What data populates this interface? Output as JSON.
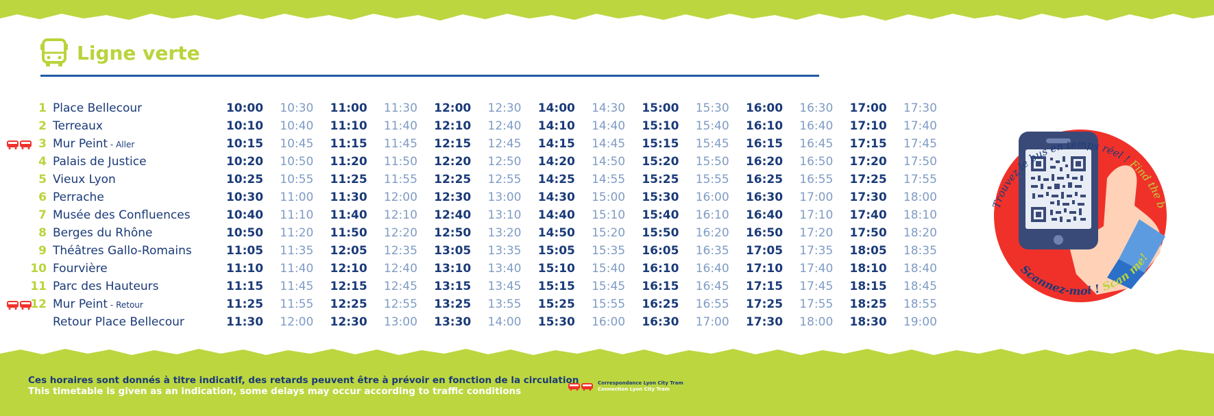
{
  "header": {
    "title": "Ligne verte",
    "icon": "bus-icon"
  },
  "colors": {
    "green": "#bcd640",
    "navy": "#1a3a78",
    "blue": "#1f5aa6",
    "light_blue": "#7f9bc4",
    "red": "#f0312a"
  },
  "stops": [
    {
      "num": "1",
      "name": "Place Bellecour",
      "suffix": "",
      "tram": false,
      "times": [
        "10:00",
        "10:30",
        "11:00",
        "11:30",
        "12:00",
        "12:30",
        "14:00",
        "14:30",
        "15:00",
        "15:30",
        "16:00",
        "16:30",
        "17:00",
        "17:30"
      ]
    },
    {
      "num": "2",
      "name": "Terreaux",
      "suffix": "",
      "tram": false,
      "times": [
        "10:10",
        "10:40",
        "11:10",
        "11:40",
        "12:10",
        "12:40",
        "14:10",
        "14:40",
        "15:10",
        "15:40",
        "16:10",
        "16:40",
        "17:10",
        "17:40"
      ]
    },
    {
      "num": "3",
      "name": "Mur Peint",
      "suffix": " - Aller",
      "tram": true,
      "times": [
        "10:15",
        "10:45",
        "11:15",
        "11:45",
        "12:15",
        "12:45",
        "14:15",
        "14:45",
        "15:15",
        "15:45",
        "16:15",
        "16:45",
        "17:15",
        "17:45"
      ]
    },
    {
      "num": "4",
      "name": "Palais de Justice",
      "suffix": "",
      "tram": false,
      "times": [
        "10:20",
        "10:50",
        "11:20",
        "11:50",
        "12:20",
        "12:50",
        "14:20",
        "14:50",
        "15:20",
        "15:50",
        "16:20",
        "16:50",
        "17:20",
        "17:50"
      ]
    },
    {
      "num": "5",
      "name": "Vieux Lyon",
      "suffix": "",
      "tram": false,
      "times": [
        "10:25",
        "10:55",
        "11:25",
        "11:55",
        "12:25",
        "12:55",
        "14:25",
        "14:55",
        "15:25",
        "15:55",
        "16:25",
        "16:55",
        "17:25",
        "17:55"
      ]
    },
    {
      "num": "6",
      "name": "Perrache",
      "suffix": "",
      "tram": false,
      "times": [
        "10:30",
        "11:00",
        "11:30",
        "12:00",
        "12:30",
        "13:00",
        "14:30",
        "15:00",
        "15:30",
        "16:00",
        "16:30",
        "17:00",
        "17:30",
        "18:00"
      ]
    },
    {
      "num": "7",
      "name": "Musée des Confluences",
      "suffix": "",
      "tram": false,
      "times": [
        "10:40",
        "11:10",
        "11:40",
        "12:10",
        "12:40",
        "13:10",
        "14:40",
        "15:10",
        "15:40",
        "16:10",
        "16:40",
        "17:10",
        "17:40",
        "18:10"
      ]
    },
    {
      "num": "8",
      "name": "Berges du Rhône",
      "suffix": "",
      "tram": false,
      "times": [
        "10:50",
        "11:20",
        "11:50",
        "12:20",
        "12:50",
        "13:20",
        "14:50",
        "15:20",
        "15:50",
        "16:20",
        "16:50",
        "17:20",
        "17:50",
        "18:20"
      ]
    },
    {
      "num": "9",
      "name": "Théâtres Gallo-Romains",
      "suffix": "",
      "tram": false,
      "times": [
        "11:05",
        "11:35",
        "12:05",
        "12:35",
        "13:05",
        "13:35",
        "15:05",
        "15:35",
        "16:05",
        "16:35",
        "17:05",
        "17:35",
        "18:05",
        "18:35"
      ]
    },
    {
      "num": "10",
      "name": "Fourvière",
      "suffix": "",
      "tram": false,
      "times": [
        "11:10",
        "11:40",
        "12:10",
        "12:40",
        "13:10",
        "13:40",
        "15:10",
        "15:40",
        "16:10",
        "16:40",
        "17:10",
        "17:40",
        "18:10",
        "18:40"
      ]
    },
    {
      "num": "11",
      "name": "Parc des Hauteurs",
      "suffix": "",
      "tram": false,
      "times": [
        "11:15",
        "11:45",
        "12:15",
        "12:45",
        "13:15",
        "13:45",
        "15:15",
        "15:45",
        "16:15",
        "16:45",
        "17:15",
        "17:45",
        "18:15",
        "18:45"
      ]
    },
    {
      "num": "12",
      "name": "Mur Peint",
      "suffix": " - Retour",
      "tram": true,
      "times": [
        "11:25",
        "11:55",
        "12:25",
        "12:55",
        "13:25",
        "13:55",
        "15:25",
        "15:55",
        "16:25",
        "16:55",
        "17:25",
        "17:55",
        "18:25",
        "18:55"
      ]
    },
    {
      "num": "",
      "name": "Retour Place Bellecour",
      "suffix": "",
      "tram": false,
      "times": [
        "11:30",
        "12:00",
        "12:30",
        "13:00",
        "13:30",
        "14:00",
        "15:30",
        "16:00",
        "16:30",
        "17:00",
        "17:30",
        "18:00",
        "18:30",
        "19:00"
      ]
    }
  ],
  "qr": {
    "top_text_fr": "Trouvez le bus en temps réel !",
    "top_text_en": "Find the bus in real time!",
    "bottom_text_fr": "Scannez-moi !",
    "bottom_text_en": "Scan me!"
  },
  "footer": {
    "note_fr": "Ces horaires sont donnés à titre indicatif, des retards peuvent être à prévoir en fonction de la circulation",
    "note_en": "This timetable is given as an indication, some delays may occur according to traffic conditions",
    "legend_fr": "Correspondance Lyon City Tram",
    "legend_en": "Connection Lyon City Tram",
    "legend_icon": "tram-icon"
  }
}
